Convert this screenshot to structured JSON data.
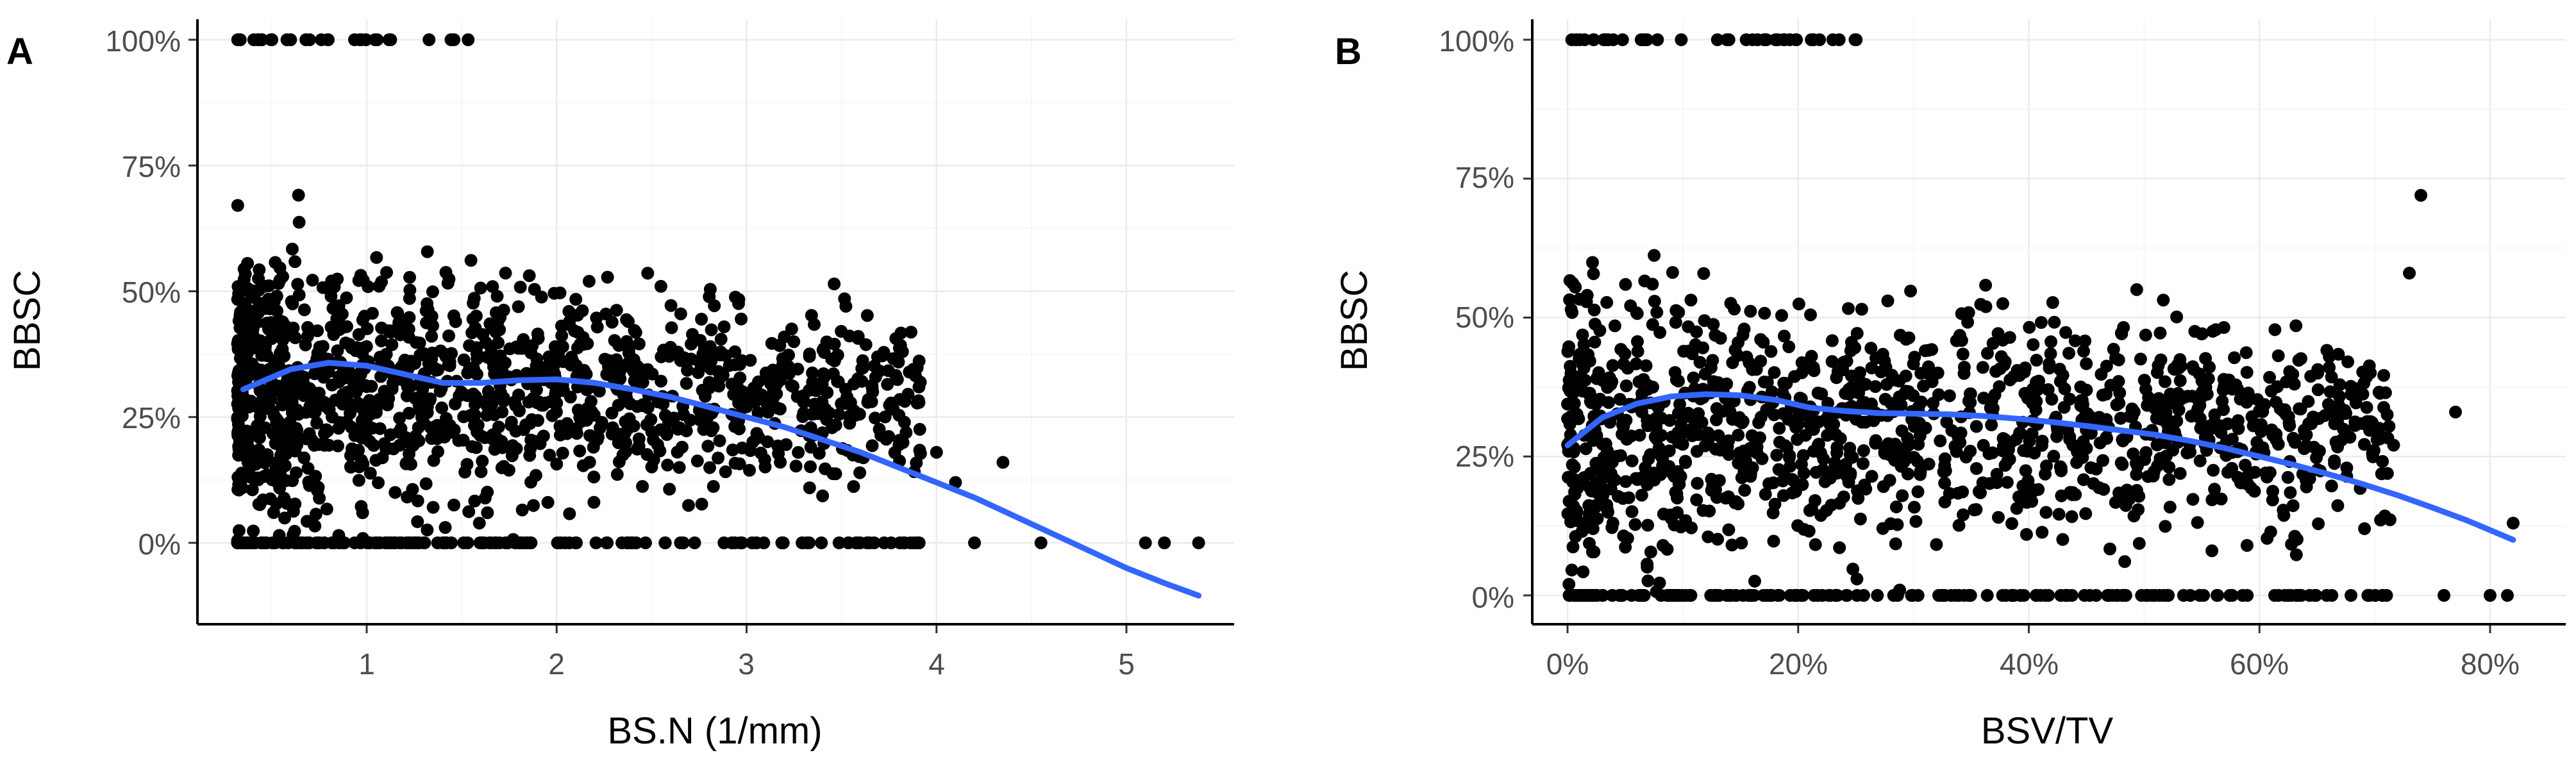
{
  "chart_data": [
    {
      "panel": "A",
      "type": "scatter",
      "xlabel": "BS.N (1/mm)",
      "ylabel": "BBSC",
      "xlim": [
        0.1,
        5.6
      ],
      "ylim": [
        -0.13,
        1.0
      ],
      "xticks": [
        1,
        2,
        3,
        4,
        5
      ],
      "xtick_labels": [
        "1",
        "2",
        "3",
        "4",
        "5"
      ],
      "yticks": [
        0,
        0.25,
        0.5,
        0.75,
        1.0
      ],
      "ytick_labels": [
        "0%",
        "25%",
        "50%",
        "75%",
        "100%"
      ],
      "points_summary": "dense cloud of about 1600 points with x from 0.3 to 5.4 and y from 0% to 100%; density falls as x increases; many points lie exactly at 0% and 100%",
      "outlier_points": [
        {
          "x": 5.1,
          "y": 0.0
        },
        {
          "x": 5.2,
          "y": 0.0
        },
        {
          "x": 5.38,
          "y": 0.0
        },
        {
          "x": 4.55,
          "y": 0.0
        },
        {
          "x": 4.2,
          "y": 0.0
        },
        {
          "x": 4.0,
          "y": 0.18
        },
        {
          "x": 4.35,
          "y": 0.16
        },
        {
          "x": 4.1,
          "y": 0.12
        }
      ],
      "smooth_line": {
        "name": "LOESS fit",
        "color": "#3366ff",
        "x": [
          0.35,
          0.6,
          0.8,
          1.0,
          1.2,
          1.4,
          1.6,
          1.8,
          2.0,
          2.2,
          2.4,
          2.6,
          2.8,
          3.0,
          3.2,
          3.4,
          3.6,
          3.8,
          4.0,
          4.2,
          4.4,
          4.6,
          4.8,
          5.0,
          5.2,
          5.38
        ],
        "y": [
          0.305,
          0.345,
          0.358,
          0.352,
          0.335,
          0.318,
          0.318,
          0.323,
          0.325,
          0.318,
          0.305,
          0.29,
          0.27,
          0.25,
          0.23,
          0.205,
          0.18,
          0.15,
          0.12,
          0.09,
          0.055,
          0.02,
          -0.015,
          -0.05,
          -0.08,
          -0.105
        ]
      }
    },
    {
      "panel": "B",
      "type": "scatter",
      "xlabel": "BSV/TV",
      "ylabel": "BBSC",
      "xlim": [
        -0.04,
        0.86
      ],
      "ylim": [
        -0.04,
        1.02
      ],
      "xticks": [
        0,
        0.2,
        0.4,
        0.6,
        0.8
      ],
      "xtick_labels": [
        "0%",
        "20%",
        "40%",
        "60%",
        "80%"
      ],
      "yticks": [
        0,
        0.25,
        0.5,
        0.75,
        1.0
      ],
      "ytick_labels": [
        "0%",
        "25%",
        "50%",
        "75%",
        "100%"
      ],
      "points_summary": "dense cloud of about 1600 points with x from 0% to 82% and y from 0% to 100%; density falls as x increases; many points lie exactly at 0% and 100%",
      "outlier_points": [
        {
          "x": 0.82,
          "y": 0.13
        },
        {
          "x": 0.815,
          "y": 0.0
        },
        {
          "x": 0.8,
          "y": 0.0
        },
        {
          "x": 0.74,
          "y": 0.72
        },
        {
          "x": 0.73,
          "y": 0.58
        },
        {
          "x": 0.77,
          "y": 0.33
        },
        {
          "x": 0.76,
          "y": 0.0
        }
      ],
      "smooth_line": {
        "name": "LOESS fit",
        "color": "#3366ff",
        "x": [
          0.0,
          0.03,
          0.06,
          0.09,
          0.12,
          0.15,
          0.18,
          0.21,
          0.24,
          0.27,
          0.3,
          0.33,
          0.36,
          0.39,
          0.42,
          0.45,
          0.48,
          0.51,
          0.54,
          0.57,
          0.6,
          0.63,
          0.66,
          0.69,
          0.72,
          0.75,
          0.78,
          0.82
        ],
        "y": [
          0.27,
          0.32,
          0.345,
          0.358,
          0.362,
          0.36,
          0.352,
          0.338,
          0.332,
          0.328,
          0.327,
          0.326,
          0.323,
          0.318,
          0.312,
          0.305,
          0.297,
          0.289,
          0.278,
          0.265,
          0.25,
          0.235,
          0.218,
          0.2,
          0.18,
          0.158,
          0.135,
          0.1
        ]
      }
    }
  ]
}
